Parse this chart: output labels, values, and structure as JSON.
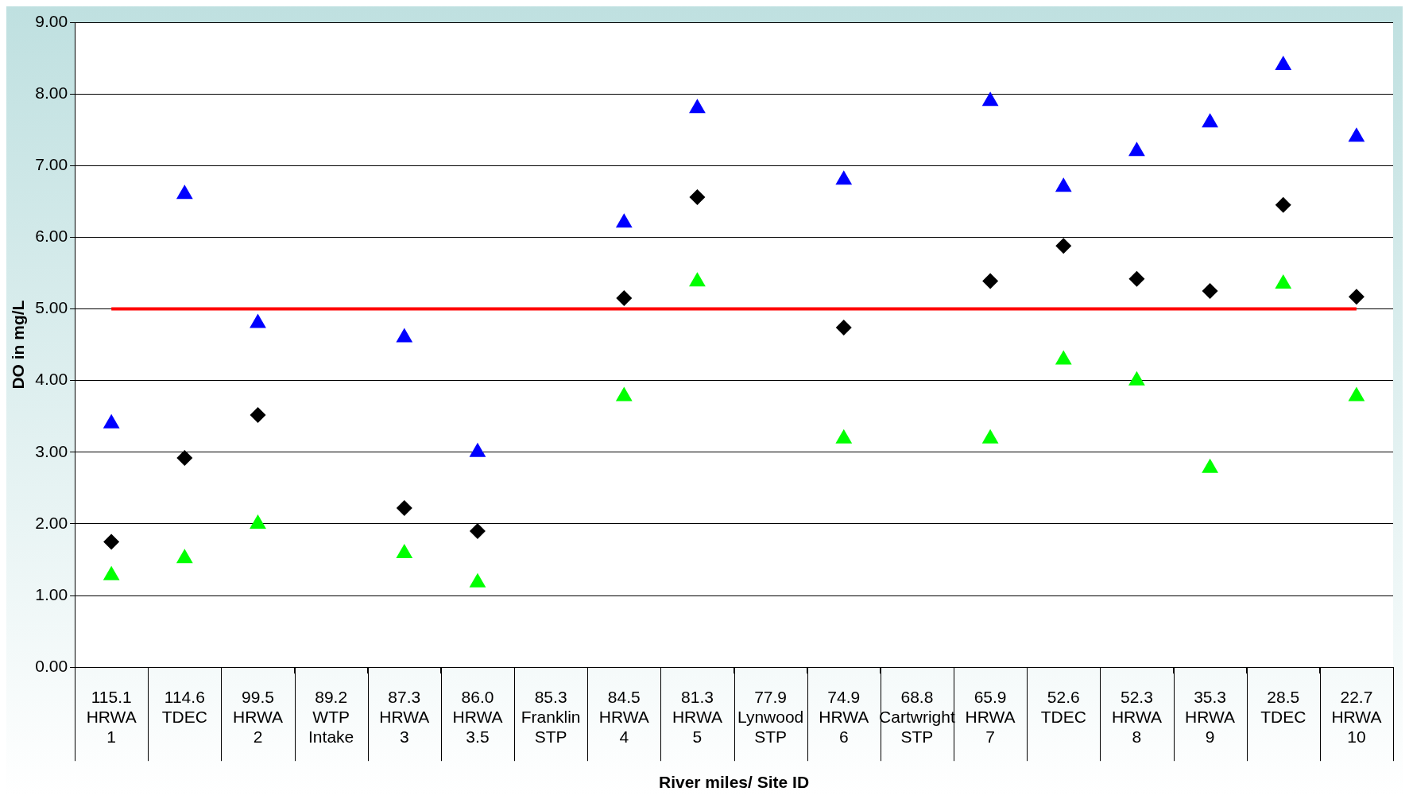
{
  "chart_data": {
    "type": "scatter",
    "xlabel": "River miles/ Site ID",
    "ylabel": "DO in mg/L",
    "categories": [
      "115.1\nHRWA 1",
      "114.6\nTDEC",
      "99.5\nHRWA 2",
      "89.2\nWTP Intake",
      "87.3\nHRWA 3",
      "86.0\nHRWA 3.5",
      "85.3\nFranklin STP",
      "84.5\nHRWA 4",
      "81.3\nHRWA 5",
      "77.9\nLynwood STP",
      "74.9\nHRWA 6",
      "68.8\nCartwright STP",
      "65.9\nHRWA 7",
      "52.6\nTDEC",
      "52.3\nHRWA 8",
      "35.3\nHRWA 9",
      "28.5\nTDEC",
      "22.7\nHRWA 10"
    ],
    "series": [
      {
        "color": "#0000ff",
        "marker": "triangle",
        "values": [
          3.4,
          6.6,
          4.8,
          null,
          4.6,
          3.0,
          null,
          6.2,
          7.8,
          null,
          6.8,
          null,
          7.9,
          6.7,
          7.2,
          7.6,
          8.4,
          7.4
        ]
      },
      {
        "color": "#000000",
        "marker": "diamond",
        "values": [
          1.75,
          2.92,
          3.52,
          null,
          2.22,
          1.9,
          null,
          5.15,
          6.56,
          null,
          4.74,
          null,
          5.39,
          5.88,
          5.42,
          5.25,
          6.45,
          5.17
        ]
      },
      {
        "color": "#00ff00",
        "marker": "triangle",
        "values": [
          1.28,
          1.52,
          2.0,
          null,
          1.59,
          1.18,
          null,
          3.78,
          5.38,
          null,
          3.19,
          null,
          3.19,
          4.29,
          4.0,
          2.78,
          5.35,
          3.78
        ]
      }
    ],
    "ylim": [
      0,
      9
    ],
    "yticks": [
      {
        "value": 0,
        "label": "0.00"
      },
      {
        "value": 1,
        "label": "1.00"
      },
      {
        "value": 2,
        "label": "2.00"
      },
      {
        "value": 3,
        "label": "3.00"
      },
      {
        "value": 4,
        "label": "4.00"
      },
      {
        "value": 5,
        "label": "5.00"
      },
      {
        "value": 6,
        "label": "6.00"
      },
      {
        "value": 7,
        "label": "7.00"
      },
      {
        "value": 8,
        "label": "8.00"
      },
      {
        "value": 9,
        "label": "9.00"
      }
    ],
    "ref_lines": [
      {
        "axis": "y",
        "value": 5,
        "color": "#ff0000"
      }
    ],
    "grid": "y",
    "legend": false
  }
}
